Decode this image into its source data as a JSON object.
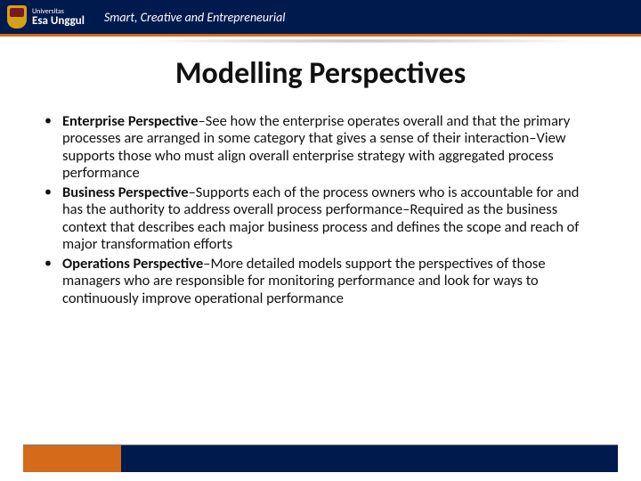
{
  "header": {
    "university_small": "Universitas",
    "university_name": "Esa Unggul",
    "tagline": "Smart, Creative and Entrepreneurial"
  },
  "slide": {
    "title": "Modelling Perspectives",
    "bullets": [
      {
        "bold": "Enterprise Perspective",
        "text": "–See how the enterprise operates overall and that the primary processes are arranged in some category that gives a sense of their interaction–View supports those who must align overall enterprise strategy with aggregated process performance"
      },
      {
        "bold": "Business Perspective",
        "text": "–Supports each of the process owners who is accountable for and has the authority to address overall process performance–Required as the business context that describes each major business process and defines the scope and reach of major transformation efforts"
      },
      {
        "bold": "Operations Perspective",
        "text": "–More detailed models support the perspectives of those managers who are responsible for monitoring performance and look for ways to continuously improve operational performance"
      }
    ]
  },
  "colors": {
    "navy": "#001a4d",
    "orange": "#d46a1a",
    "gold": "#d4a017",
    "text": "#111111",
    "white": "#ffffff"
  }
}
